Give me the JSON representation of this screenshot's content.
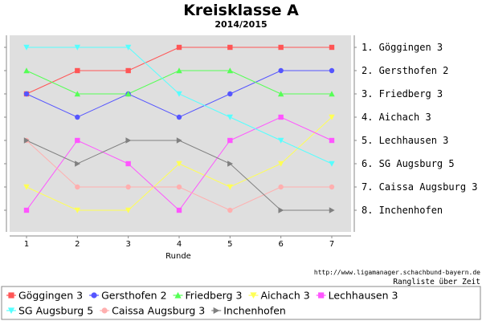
{
  "chart_data": {
    "type": "line",
    "title": "Kreisklasse A",
    "subtitle": "2014/2015",
    "xlabel": "Runde",
    "ylabel": "",
    "x": [
      1,
      2,
      3,
      4,
      5,
      6,
      7
    ],
    "ylim": [
      1,
      8
    ],
    "y_inverted": true,
    "grid": false,
    "legend_position": "bottom",
    "rank_labels": [
      "1. Göggingen 3",
      "2. Gersthofen 2",
      "3. Friedberg 3",
      "4. Aichach 3",
      "5. Lechhausen 3",
      "6. SG Augsburg 5",
      "7. Caissa Augsburg 3",
      "8. Inchenhofen"
    ],
    "series": [
      {
        "name": "Göggingen 3",
        "color": "#ff5555",
        "marker": "square",
        "values": [
          3,
          2,
          2,
          1,
          1,
          1,
          1
        ]
      },
      {
        "name": "Gersthofen 2",
        "color": "#5555ff",
        "marker": "circle",
        "values": [
          3,
          4,
          3,
          4,
          3,
          2,
          2
        ]
      },
      {
        "name": "Friedberg 3",
        "color": "#55ff55",
        "marker": "triangle-up",
        "values": [
          2,
          3,
          3,
          2,
          2,
          3,
          3
        ]
      },
      {
        "name": "Aichach 3",
        "color": "#ffff55",
        "marker": "triangle-down",
        "values": [
          7,
          8,
          8,
          6,
          7,
          6,
          4
        ]
      },
      {
        "name": "Lechhausen 3",
        "color": "#ff55ff",
        "marker": "square",
        "values": [
          8,
          5,
          6,
          8,
          5,
          4,
          5
        ]
      },
      {
        "name": "SG Augsburg 5",
        "color": "#55ffff",
        "marker": "triangle-down",
        "values": [
          1,
          1,
          1,
          3,
          4,
          5,
          6
        ]
      },
      {
        "name": "Caissa Augsburg 3",
        "color": "#ffafaf",
        "marker": "circle",
        "values": [
          5,
          7,
          7,
          7,
          8,
          7,
          7
        ]
      },
      {
        "name": "Inchenhofen",
        "color": "#808080",
        "marker": "triangle-right",
        "values": [
          5,
          6,
          5,
          5,
          6,
          8,
          8
        ]
      }
    ],
    "credit": "http://www.ligamanager.schachbund-bayern.de",
    "caption": "Rangliste über Zeit"
  }
}
